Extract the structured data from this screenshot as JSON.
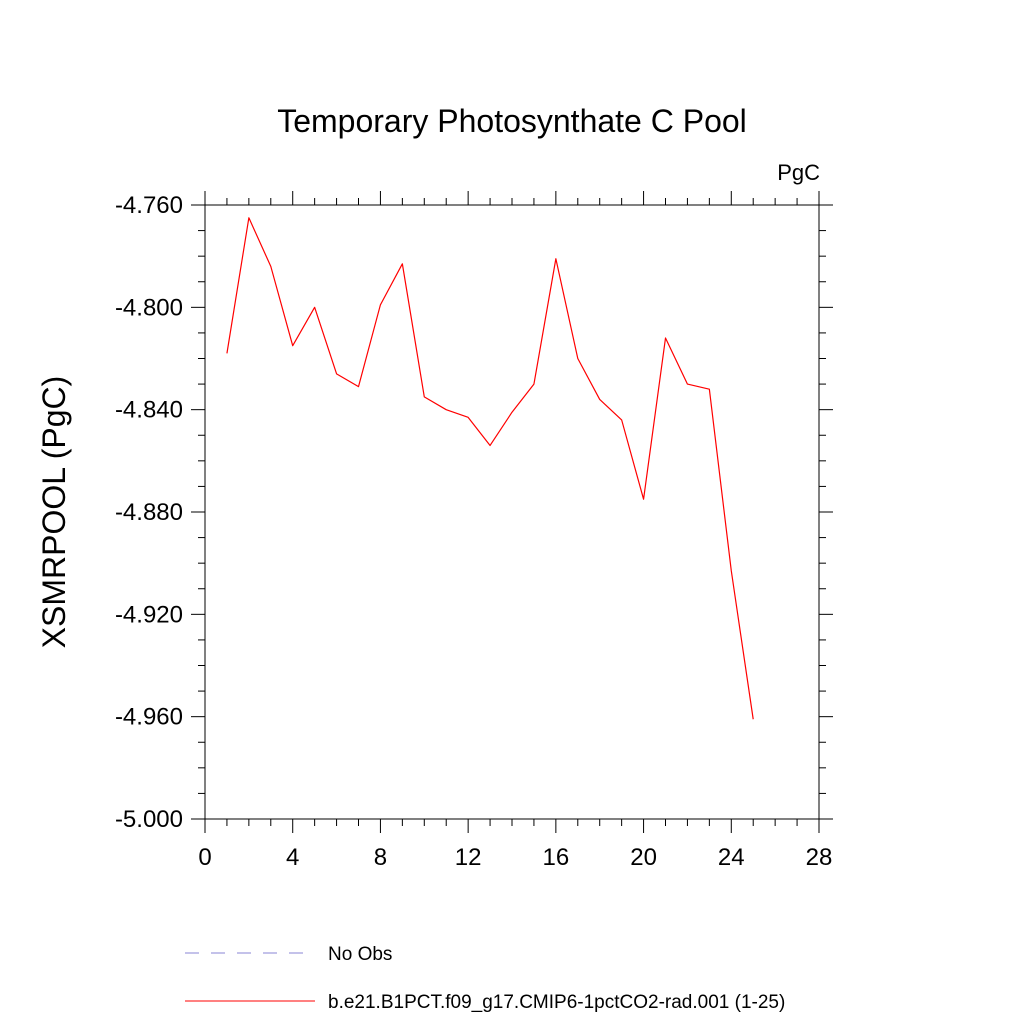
{
  "chart_data": {
    "type": "line",
    "title": "Temporary Photosynthate C Pool",
    "units_label": "PgC",
    "ylabel": "XSMRPOOL  (PgC)",
    "xlabel": "",
    "xlim": [
      0,
      28
    ],
    "ylim": [
      -5.0,
      -4.76
    ],
    "x_ticks": [
      0,
      4,
      8,
      12,
      16,
      20,
      24,
      28
    ],
    "x_tick_labels": [
      "0",
      "4",
      "8",
      "12",
      "16",
      "20",
      "24",
      "28"
    ],
    "y_ticks": [
      -4.76,
      -4.8,
      -4.84,
      -4.88,
      -4.92,
      -4.96,
      -5.0
    ],
    "y_tick_labels": [
      "-4.760",
      "-4.800",
      "-4.840",
      "-4.880",
      "-4.920",
      "-4.960",
      "-5.000"
    ],
    "x_minor_step": 1,
    "y_minor_step": 0.01,
    "grid": false,
    "legend_position": "bottom",
    "series": [
      {
        "name": "b.e21.B1PCT.f09_g17.CMIP6-1pctCO2-rad.001 (1-25)",
        "color": "#ff0000",
        "dash": "solid",
        "x": [
          1,
          2,
          3,
          4,
          5,
          6,
          7,
          8,
          9,
          10,
          11,
          12,
          13,
          14,
          15,
          16,
          17,
          18,
          19,
          20,
          21,
          22,
          23,
          24,
          25
        ],
        "values": [
          -4.818,
          -4.765,
          -4.784,
          -4.815,
          -4.8,
          -4.826,
          -4.831,
          -4.799,
          -4.783,
          -4.835,
          -4.84,
          -4.843,
          -4.854,
          -4.841,
          -4.83,
          -4.781,
          -4.82,
          -4.836,
          -4.844,
          -4.875,
          -4.812,
          -4.83,
          -4.832,
          -4.903,
          -4.961
        ]
      }
    ],
    "legend": [
      {
        "label": "No Obs",
        "color": "#8a84d6",
        "dash": "dashed"
      },
      {
        "label": "b.e21.B1PCT.f09_g17.CMIP6-1pctCO2-rad.001 (1-25)",
        "color": "#ff0000",
        "dash": "solid"
      }
    ]
  }
}
